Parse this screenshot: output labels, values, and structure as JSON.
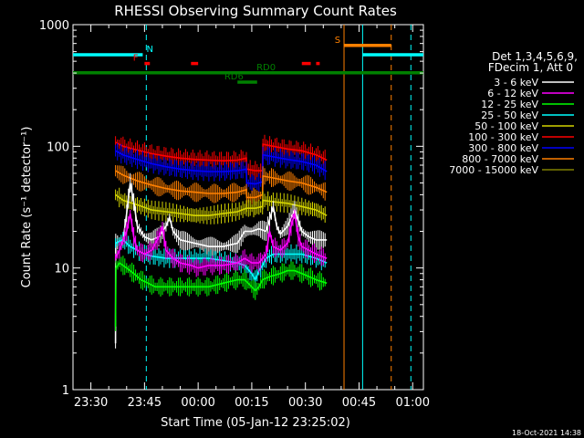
{
  "chart_data": {
    "type": "line",
    "title": "RHESSI Observing Summary Count Rates",
    "xlabel": "Start Time (05-Jan-12 23:25:02)",
    "ylabel": "Count Rate (s⁻¹ detector⁻¹)",
    "yscale": "log",
    "ylim": [
      1,
      1000
    ],
    "xlim_minutes": [
      0,
      98
    ],
    "x_ticks": [
      {
        "t": 5,
        "label": "23:30"
      },
      {
        "t": 20,
        "label": "23:45"
      },
      {
        "t": 35,
        "label": "00:00"
      },
      {
        "t": 50,
        "label": "00:15"
      },
      {
        "t": 65,
        "label": "00:30"
      },
      {
        "t": 80,
        "label": "00:45"
      },
      {
        "t": 95,
        "label": "01:00"
      }
    ],
    "y_ticks": [
      {
        "v": 1,
        "label": "1"
      },
      {
        "v": 10,
        "label": "10"
      },
      {
        "v": 100,
        "label": "100"
      },
      {
        "v": 1000,
        "label": "1000"
      }
    ],
    "legend": {
      "position": "right",
      "header": [
        "Det 1,3,4,5,6,9,",
        "FDecim 1, Att 0"
      ],
      "entries": [
        {
          "label": "3 - 6 keV",
          "color": "#ffffff"
        },
        {
          "label": "6 - 12 keV",
          "color": "#ff00ff"
        },
        {
          "label": "12 - 25 keV",
          "color": "#00ff00"
        },
        {
          "label": "25 - 50 keV",
          "color": "#00ffff"
        },
        {
          "label": "50 - 100 keV",
          "color": "#d4d400"
        },
        {
          "label": "100 - 300 keV",
          "color": "#ff0000"
        },
        {
          "label": "300 - 800 keV",
          "color": "#0000ff"
        },
        {
          "label": "800 - 7000 keV",
          "color": "#ff8000"
        },
        {
          "label": "7000 - 15000 keV",
          "color": "#808000"
        }
      ]
    },
    "series": [
      {
        "name": "100 - 300 keV",
        "color": "#ff0000",
        "points": [
          [
            11.9,
            108
          ],
          [
            14,
            100
          ],
          [
            18,
            93
          ],
          [
            22,
            87
          ],
          [
            26,
            83
          ],
          [
            30,
            80
          ],
          [
            34,
            78
          ],
          [
            38,
            77
          ],
          [
            42,
            76
          ],
          [
            46,
            77
          ],
          [
            48.5,
            80
          ],
          [
            48.6,
            65
          ],
          [
            51,
            63
          ],
          [
            53,
            63
          ],
          [
            53.1,
            104
          ],
          [
            56,
            100
          ],
          [
            60,
            95
          ],
          [
            64,
            92
          ],
          [
            68,
            85
          ],
          [
            71,
            77
          ]
        ]
      },
      {
        "name": "300 - 800 keV",
        "color": "#0000ff",
        "points": [
          [
            11.9,
            92
          ],
          [
            14,
            85
          ],
          [
            18,
            78
          ],
          [
            22,
            72
          ],
          [
            26,
            68
          ],
          [
            30,
            65
          ],
          [
            34,
            63
          ],
          [
            38,
            62
          ],
          [
            42,
            62
          ],
          [
            46,
            63
          ],
          [
            48.5,
            65
          ],
          [
            48.6,
            50
          ],
          [
            51,
            49
          ],
          [
            53,
            51
          ],
          [
            53.1,
            85
          ],
          [
            56,
            82
          ],
          [
            60,
            78
          ],
          [
            64,
            75
          ],
          [
            68,
            70
          ],
          [
            71,
            62
          ]
        ]
      },
      {
        "name": "800 - 7000 keV",
        "color": "#ff8000",
        "points": [
          [
            11.9,
            63
          ],
          [
            14,
            58
          ],
          [
            18,
            52
          ],
          [
            22,
            48
          ],
          [
            26,
            45
          ],
          [
            30,
            43
          ],
          [
            34,
            42
          ],
          [
            38,
            41
          ],
          [
            42,
            41
          ],
          [
            46,
            42
          ],
          [
            48.5,
            44
          ],
          [
            48.6,
            38
          ],
          [
            51,
            38
          ],
          [
            53,
            40
          ],
          [
            53.1,
            57
          ],
          [
            56,
            55
          ],
          [
            60,
            52
          ],
          [
            64,
            50
          ],
          [
            68,
            46
          ],
          [
            71,
            42
          ]
        ]
      },
      {
        "name": "50 - 100 keV",
        "color": "#d4d400",
        "points": [
          [
            11.9,
            40
          ],
          [
            14,
            36
          ],
          [
            18,
            33
          ],
          [
            22,
            30
          ],
          [
            26,
            29
          ],
          [
            30,
            28
          ],
          [
            34,
            27
          ],
          [
            38,
            27
          ],
          [
            42,
            28
          ],
          [
            46,
            29
          ],
          [
            48.5,
            31
          ],
          [
            48.6,
            31
          ],
          [
            51,
            31
          ],
          [
            53,
            32
          ],
          [
            53.1,
            36
          ],
          [
            56,
            35
          ],
          [
            60,
            34
          ],
          [
            64,
            32
          ],
          [
            68,
            30
          ],
          [
            71,
            27
          ]
        ]
      },
      {
        "name": "3 - 6 keV",
        "color": "#ffffff",
        "points": [
          [
            11.9,
            2.4
          ],
          [
            11.95,
            16
          ],
          [
            14,
            17
          ],
          [
            15,
            28
          ],
          [
            16,
            50
          ],
          [
            17,
            35
          ],
          [
            18,
            22
          ],
          [
            20,
            18
          ],
          [
            22,
            17
          ],
          [
            24,
            18
          ],
          [
            26,
            22
          ],
          [
            27,
            26
          ],
          [
            28,
            20
          ],
          [
            30,
            17
          ],
          [
            34,
            16
          ],
          [
            38,
            15
          ],
          [
            42,
            15
          ],
          [
            46,
            16
          ],
          [
            48,
            20
          ],
          [
            50,
            20
          ],
          [
            52,
            21
          ],
          [
            54,
            20
          ],
          [
            55,
            25
          ],
          [
            56,
            32
          ],
          [
            57,
            22
          ],
          [
            58,
            19
          ],
          [
            60,
            22
          ],
          [
            62,
            30
          ],
          [
            64,
            20
          ],
          [
            66,
            18
          ],
          [
            68,
            17
          ],
          [
            71,
            17
          ]
        ]
      },
      {
        "name": "25 - 50 keV",
        "color": "#00ffff",
        "points": [
          [
            11.9,
            16
          ],
          [
            14,
            17
          ],
          [
            16,
            15
          ],
          [
            18,
            14
          ],
          [
            20,
            13
          ],
          [
            22,
            12.5
          ],
          [
            26,
            12
          ],
          [
            30,
            12
          ],
          [
            34,
            12
          ],
          [
            38,
            12
          ],
          [
            42,
            11.5
          ],
          [
            46,
            11
          ],
          [
            48,
            10.5
          ],
          [
            50,
            9
          ],
          [
            51,
            8
          ],
          [
            52,
            9.5
          ],
          [
            53,
            10.5
          ],
          [
            54,
            12
          ],
          [
            56,
            13
          ],
          [
            60,
            13
          ],
          [
            64,
            13
          ],
          [
            68,
            12
          ],
          [
            71,
            11
          ]
        ]
      },
      {
        "name": "6 - 12 keV",
        "color": "#ff00ff",
        "points": [
          [
            11.9,
            12
          ],
          [
            13,
            14
          ],
          [
            15,
            20
          ],
          [
            16,
            28
          ],
          [
            17,
            18
          ],
          [
            18,
            14
          ],
          [
            20,
            13
          ],
          [
            22,
            14
          ],
          [
            24,
            18
          ],
          [
            25,
            22
          ],
          [
            26,
            14
          ],
          [
            28,
            12
          ],
          [
            30,
            11
          ],
          [
            33,
            10.5
          ],
          [
            35,
            10
          ],
          [
            38,
            10.5
          ],
          [
            42,
            10.5
          ],
          [
            46,
            11
          ],
          [
            48,
            12
          ],
          [
            50,
            11
          ],
          [
            52,
            11
          ],
          [
            54,
            13
          ],
          [
            55,
            20
          ],
          [
            56,
            15
          ],
          [
            58,
            14
          ],
          [
            60,
            16
          ],
          [
            61,
            22
          ],
          [
            62,
            28
          ],
          [
            63,
            18
          ],
          [
            64,
            15
          ],
          [
            66,
            14
          ],
          [
            68,
            13
          ],
          [
            71,
            12
          ]
        ]
      },
      {
        "name": "12 - 25 keV",
        "color": "#00ff00",
        "points": [
          [
            11.9,
            3.3
          ],
          [
            12,
            10
          ],
          [
            13,
            11
          ],
          [
            15,
            10
          ],
          [
            17,
            9
          ],
          [
            19,
            8
          ],
          [
            21,
            7.5
          ],
          [
            23,
            7
          ],
          [
            26,
            7
          ],
          [
            30,
            7
          ],
          [
            34,
            7
          ],
          [
            38,
            7
          ],
          [
            42,
            7.5
          ],
          [
            46,
            8
          ],
          [
            48,
            8
          ],
          [
            50,
            7
          ],
          [
            51,
            6.5
          ],
          [
            52,
            7
          ],
          [
            53,
            8
          ],
          [
            55,
            8.5
          ],
          [
            58,
            9
          ],
          [
            60,
            9.5
          ],
          [
            62,
            9.5
          ],
          [
            64,
            9
          ],
          [
            66,
            8.5
          ],
          [
            68,
            8
          ],
          [
            71,
            7.5
          ]
        ]
      }
    ],
    "vlines": [
      {
        "t": 20.5,
        "color": "#00ffff",
        "dash": true
      },
      {
        "t": 94.5,
        "color": "#00ffff",
        "dash": true
      },
      {
        "t": 89,
        "color": "#ff8000",
        "dash": true
      },
      {
        "t": 75.8,
        "color": "#ff8000",
        "dash": false
      },
      {
        "t": 81,
        "color": "#00ffff",
        "dash": false
      }
    ],
    "state_bars": [
      {
        "label": "N",
        "color": "#00ffff",
        "segments": [
          [
            0,
            19.5
          ],
          [
            81,
            98
          ]
        ],
        "level": 1.0
      },
      {
        "label": "F",
        "color": "#ff0000",
        "segments": [
          [
            20,
            21.5
          ],
          [
            33,
            35
          ],
          [
            64,
            66.5
          ],
          [
            68,
            69
          ]
        ],
        "level": 0.84
      },
      {
        "label": "S",
        "color": "#ff8000",
        "segments": [
          [
            75.8,
            89
          ]
        ],
        "level": 1.17
      },
      {
        "label": "RD0",
        "color": "#008000",
        "segments": [
          [
            0,
            98
          ]
        ],
        "level": 0.67
      },
      {
        "label": "RD6",
        "color": "#008000",
        "segments": [
          [
            46,
            51.5
          ]
        ],
        "level": 0.5
      }
    ],
    "bar_labels": [
      {
        "text": "N",
        "t": 21.5,
        "color": "#00ffff"
      },
      {
        "text": "F",
        "t": 17.5,
        "color": "#ff0000"
      },
      {
        "text": "S",
        "t": 74,
        "color": "#ff8000"
      },
      {
        "text": "RD0",
        "t": 54,
        "color": "#008000"
      },
      {
        "text": "RD6",
        "t": 45,
        "color": "#008000"
      }
    ]
  },
  "footer": {
    "timestamp": "18-Oct-2021 14:38"
  }
}
